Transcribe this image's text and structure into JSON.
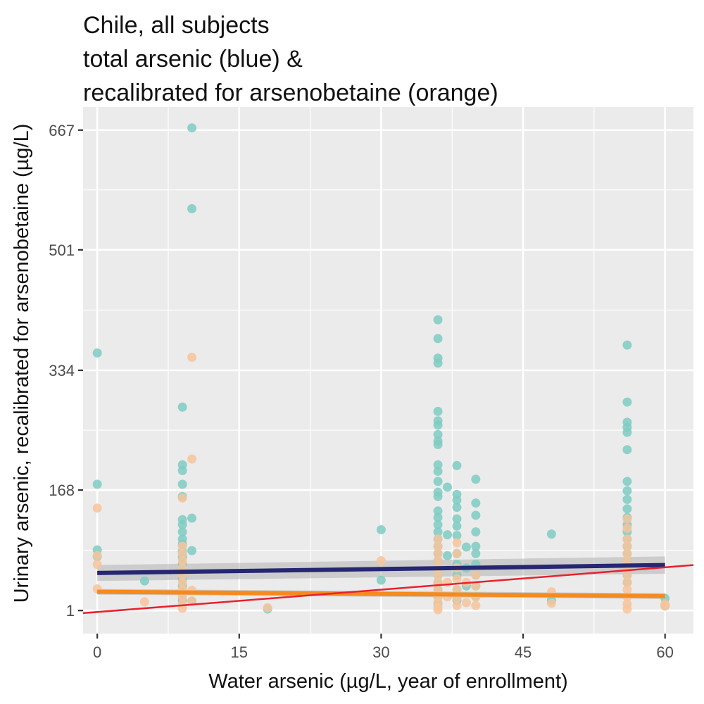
{
  "chart_data": {
    "type": "scatter",
    "title": [
      "Chile, all subjects",
      "total arsenic (blue) &",
      "recalibrated for arsenobetaine (orange)"
    ],
    "xlabel": "Water arsenic (µg/L, year of enrollment)",
    "ylabel": "Urinary arsenic, recalibrated for arsenobetaine (µg/L)",
    "xlim": [
      -1.5,
      63
    ],
    "ylim": [
      -31,
      699
    ],
    "x_ticks": [
      0,
      15,
      30,
      45,
      60
    ],
    "x_tick_labels": [
      "0",
      "15",
      "30",
      "45",
      "60"
    ],
    "y_ticks": [
      1,
      168,
      334,
      501,
      667
    ],
    "y_tick_labels": [
      "1",
      "168",
      "334",
      "501",
      "667"
    ],
    "grid": true,
    "colors": {
      "panel": "#EBEBEB",
      "grid": "#FFFFFF",
      "total": "#7FCDC3",
      "recalibrated": "#F7C49C",
      "fit_total": "#262673",
      "fit_recalibrated": "#F58A1F",
      "reference": "#E8212B",
      "ci_band": "#B3B3B3"
    },
    "series": [
      {
        "key": "total",
        "points": [
          [
            0,
            358
          ],
          [
            0,
            176
          ],
          [
            0,
            85
          ],
          [
            0,
            76
          ],
          [
            5,
            42
          ],
          [
            9,
            283
          ],
          [
            9,
            203
          ],
          [
            9,
            195
          ],
          [
            9,
            176
          ],
          [
            9,
            159
          ],
          [
            9,
            127
          ],
          [
            9,
            120
          ],
          [
            9,
            110
          ],
          [
            9,
            100
          ],
          [
            9,
            93
          ],
          [
            9,
            83
          ],
          [
            9,
            75
          ],
          [
            9,
            65
          ],
          [
            9,
            55
          ],
          [
            9,
            45
          ],
          [
            9,
            35
          ],
          [
            9,
            25
          ],
          [
            9,
            15
          ],
          [
            10,
            670
          ],
          [
            10,
            558
          ],
          [
            10,
            129
          ],
          [
            10,
            84
          ],
          [
            10,
            14
          ],
          [
            18,
            3
          ],
          [
            30,
            113
          ],
          [
            30,
            43
          ],
          [
            36,
            404
          ],
          [
            36,
            378
          ],
          [
            36,
            351
          ],
          [
            36,
            344
          ],
          [
            36,
            277
          ],
          [
            36,
            264
          ],
          [
            36,
            258
          ],
          [
            36,
            245
          ],
          [
            36,
            236
          ],
          [
            36,
            231
          ],
          [
            36,
            203
          ],
          [
            36,
            194
          ],
          [
            36,
            180
          ],
          [
            36,
            165
          ],
          [
            36,
            159
          ],
          [
            36,
            139
          ],
          [
            36,
            130
          ],
          [
            36,
            120
          ],
          [
            36,
            110
          ],
          [
            36,
            100
          ],
          [
            36,
            90
          ],
          [
            36,
            80
          ],
          [
            36,
            70
          ],
          [
            36,
            60
          ],
          [
            36,
            50
          ],
          [
            36,
            40
          ],
          [
            36,
            30
          ],
          [
            36,
            20
          ],
          [
            36,
            10
          ],
          [
            37,
            172
          ],
          [
            37,
            106
          ],
          [
            37,
            77
          ],
          [
            38,
            202
          ],
          [
            38,
            162
          ],
          [
            38,
            154
          ],
          [
            38,
            144
          ],
          [
            38,
            128
          ],
          [
            38,
            118
          ],
          [
            38,
            105
          ],
          [
            38,
            80
          ],
          [
            38,
            65
          ],
          [
            38,
            50
          ],
          [
            38,
            30
          ],
          [
            38,
            15
          ],
          [
            39,
            89
          ],
          [
            39,
            60
          ],
          [
            39,
            35
          ],
          [
            40,
            183
          ],
          [
            40,
            150
          ],
          [
            40,
            133
          ],
          [
            40,
            110
          ],
          [
            40,
            90
          ],
          [
            40,
            80
          ],
          [
            40,
            65
          ],
          [
            40,
            50
          ],
          [
            40,
            35
          ],
          [
            40,
            20
          ],
          [
            48,
            107
          ],
          [
            48,
            15
          ],
          [
            56,
            369
          ],
          [
            56,
            290
          ],
          [
            56,
            262
          ],
          [
            56,
            255
          ],
          [
            56,
            248
          ],
          [
            56,
            224
          ],
          [
            56,
            180
          ],
          [
            56,
            167
          ],
          [
            56,
            155
          ],
          [
            56,
            142
          ],
          [
            56,
            130
          ],
          [
            56,
            120
          ],
          [
            56,
            110
          ],
          [
            56,
            100
          ],
          [
            56,
            90
          ],
          [
            56,
            80
          ],
          [
            56,
            70
          ],
          [
            56,
            60
          ],
          [
            56,
            50
          ],
          [
            56,
            40
          ],
          [
            60,
            18
          ],
          [
            60,
            8
          ]
        ]
      },
      {
        "key": "recalibrated",
        "points": [
          [
            0,
            143
          ],
          [
            0,
            77
          ],
          [
            0,
            65
          ],
          [
            0,
            31
          ],
          [
            5,
            13
          ],
          [
            9,
            157
          ],
          [
            9,
            90
          ],
          [
            9,
            80
          ],
          [
            9,
            70
          ],
          [
            9,
            60
          ],
          [
            9,
            50
          ],
          [
            9,
            40
          ],
          [
            9,
            30
          ],
          [
            9,
            20
          ],
          [
            9,
            10
          ],
          [
            9,
            4
          ],
          [
            10,
            352
          ],
          [
            10,
            211
          ],
          [
            10,
            29
          ],
          [
            10,
            14
          ],
          [
            18,
            5
          ],
          [
            30,
            70
          ],
          [
            36,
            100
          ],
          [
            36,
            90
          ],
          [
            36,
            80
          ],
          [
            36,
            70
          ],
          [
            36,
            60
          ],
          [
            36,
            50
          ],
          [
            36,
            40
          ],
          [
            36,
            30
          ],
          [
            36,
            20
          ],
          [
            36,
            12
          ],
          [
            36,
            5
          ],
          [
            36,
            2
          ],
          [
            37,
            40
          ],
          [
            37,
            20
          ],
          [
            38,
            95
          ],
          [
            38,
            80
          ],
          [
            38,
            60
          ],
          [
            38,
            45
          ],
          [
            38,
            30
          ],
          [
            38,
            18
          ],
          [
            38,
            8
          ],
          [
            39,
            40
          ],
          [
            39,
            12
          ],
          [
            40,
            50
          ],
          [
            40,
            35
          ],
          [
            40,
            20
          ],
          [
            40,
            8
          ],
          [
            48,
            27
          ],
          [
            48,
            11
          ],
          [
            56,
            128
          ],
          [
            56,
            115
          ],
          [
            56,
            100
          ],
          [
            56,
            90
          ],
          [
            56,
            80
          ],
          [
            56,
            70
          ],
          [
            56,
            60
          ],
          [
            56,
            50
          ],
          [
            56,
            40
          ],
          [
            56,
            30
          ],
          [
            56,
            20
          ],
          [
            56,
            10
          ],
          [
            56,
            3
          ],
          [
            60,
            10
          ],
          [
            60,
            7
          ]
        ]
      }
    ],
    "fits": {
      "total": {
        "x": [
          0,
          60
        ],
        "y": [
          53,
          64
        ],
        "ci": [
          [
            0,
            42,
            64
          ],
          [
            60,
            52,
            76
          ]
        ]
      },
      "recalibrated": {
        "x": [
          0,
          60
        ],
        "y": [
          27,
          21
        ],
        "ci": [
          [
            0,
            23,
            31
          ],
          [
            60,
            17,
            25
          ]
        ]
      },
      "reference": {
        "x": [
          -1.5,
          63
        ],
        "y": [
          -2.6,
          64
        ]
      }
    }
  }
}
